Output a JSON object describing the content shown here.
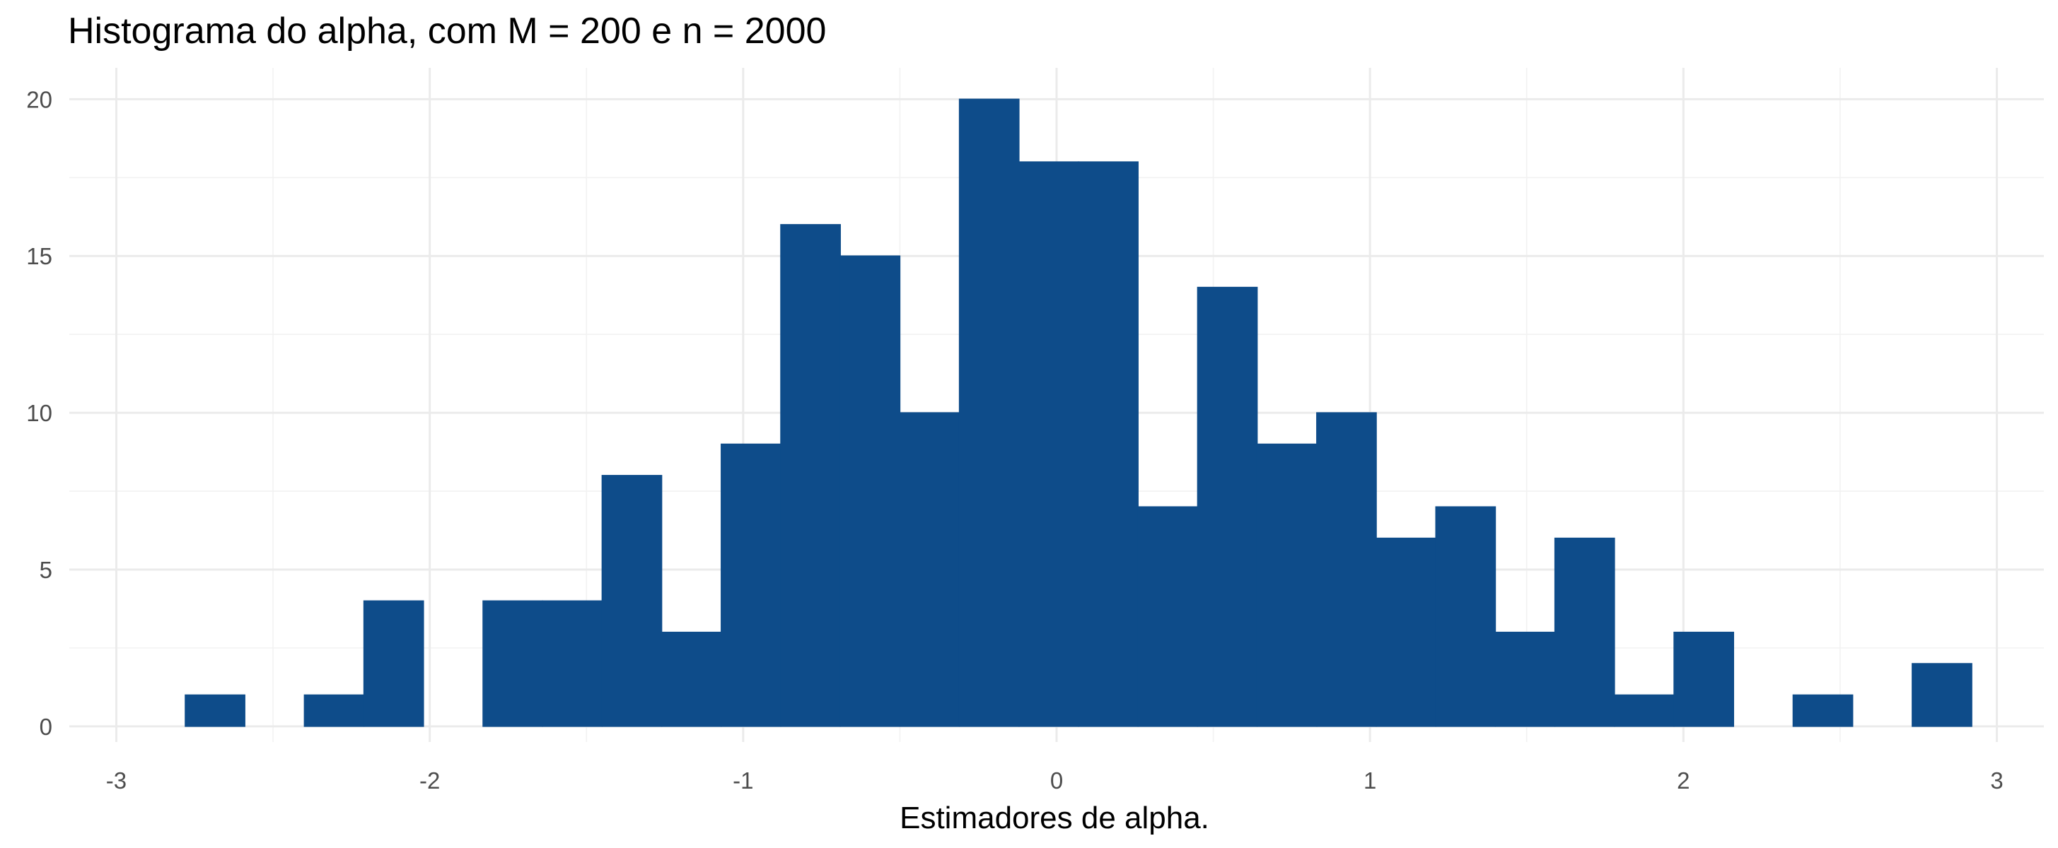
{
  "chart_data": {
    "type": "bar",
    "title": "Histograma do alpha, com M = 200 e n = 2000",
    "xlabel": "Estimadores de alpha.",
    "ylabel": "",
    "xlim": [
      -3.15,
      3.15
    ],
    "ylim": [
      -0.5,
      21
    ],
    "xticks": [
      -3,
      -2,
      -1,
      0,
      1,
      2,
      3
    ],
    "xtick_labels": [
      "-3",
      "-2",
      "-1",
      "0",
      "1",
      "2",
      "3"
    ],
    "yticks": [
      0,
      5,
      10,
      15,
      20
    ],
    "ytick_labels": [
      "0",
      "5",
      "10",
      "15",
      "20"
    ],
    "grid": true,
    "bar_color": "#0E4C8A",
    "bin_width": 0.19,
    "bins": [
      {
        "x0": -2.78,
        "x1": -2.59,
        "count": 1
      },
      {
        "x0": -2.59,
        "x1": -2.4,
        "count": 0
      },
      {
        "x0": -2.4,
        "x1": -2.21,
        "count": 1
      },
      {
        "x0": -2.21,
        "x1": -2.02,
        "count": 4
      },
      {
        "x0": -2.02,
        "x1": -1.83,
        "count": 0
      },
      {
        "x0": -1.83,
        "x1": -1.64,
        "count": 4
      },
      {
        "x0": -1.64,
        "x1": -1.45,
        "count": 4
      },
      {
        "x0": -1.45,
        "x1": -1.26,
        "count": 8
      },
      {
        "x0": -1.26,
        "x1": -1.07,
        "count": 3
      },
      {
        "x0": -1.07,
        "x1": -0.88,
        "count": 9
      },
      {
        "x0": -0.88,
        "x1": -0.69,
        "count": 16
      },
      {
        "x0": -0.69,
        "x1": -0.5,
        "count": 15
      },
      {
        "x0": -0.5,
        "x1": -0.31,
        "count": 10
      },
      {
        "x0": -0.31,
        "x1": -0.12,
        "count": 20
      },
      {
        "x0": -0.12,
        "x1": 0.07,
        "count": 18
      },
      {
        "x0": 0.07,
        "x1": 0.26,
        "count": 18
      },
      {
        "x0": 0.26,
        "x1": 0.45,
        "count": 7
      },
      {
        "x0": 0.45,
        "x1": 0.64,
        "count": 14
      },
      {
        "x0": 0.64,
        "x1": 0.83,
        "count": 9
      },
      {
        "x0": 0.83,
        "x1": 1.02,
        "count": 10
      },
      {
        "x0": 1.02,
        "x1": 1.21,
        "count": 6
      },
      {
        "x0": 1.21,
        "x1": 1.4,
        "count": 7
      },
      {
        "x0": 1.4,
        "x1": 1.59,
        "count": 3
      },
      {
        "x0": 1.59,
        "x1": 1.78,
        "count": 6
      },
      {
        "x0": 1.78,
        "x1": 1.97,
        "count": 1
      },
      {
        "x0": 1.97,
        "x1": 2.16,
        "count": 3
      },
      {
        "x0": 2.16,
        "x1": 2.35,
        "count": 0
      },
      {
        "x0": 2.35,
        "x1": 2.54,
        "count": 1
      },
      {
        "x0": 2.54,
        "x1": 2.73,
        "count": 0
      },
      {
        "x0": 2.73,
        "x1": 2.92,
        "count": 2
      }
    ]
  }
}
